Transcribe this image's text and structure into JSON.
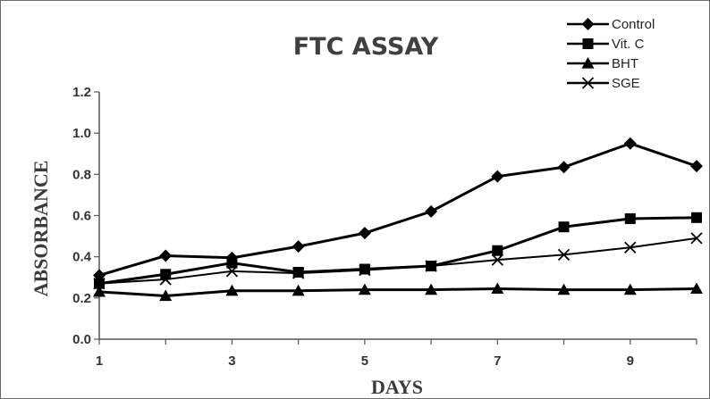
{
  "chart_data": {
    "type": "line",
    "title": "FTC ASSAY",
    "xlabel": "DAYS",
    "ylabel": "ABSORBANCE",
    "x": [
      1,
      2,
      3,
      4,
      5,
      6,
      7,
      8,
      9,
      10
    ],
    "xlim": [
      1,
      10
    ],
    "ylim": [
      0,
      1.2
    ],
    "x_ticks": [
      "1",
      "3",
      "5",
      "7",
      "9"
    ],
    "x_tick_values": [
      1,
      3,
      5,
      7,
      9
    ],
    "y_ticks": [
      "0.0",
      "0.2",
      "0.4",
      "0.6",
      "0.8",
      "1.0",
      "1.2"
    ],
    "y_tick_values": [
      0,
      0.2,
      0.4,
      0.6,
      0.8,
      1.0,
      1.2
    ],
    "grid": false,
    "legend_position": "top-right",
    "series": [
      {
        "name": "Control",
        "marker": "diamond",
        "values": [
          0.31,
          0.405,
          0.395,
          0.45,
          0.515,
          0.62,
          0.79,
          0.835,
          0.95,
          0.84
        ]
      },
      {
        "name": "Vit. C",
        "marker": "square",
        "values": [
          0.27,
          0.315,
          0.37,
          0.325,
          0.34,
          0.355,
          0.43,
          0.545,
          0.585,
          0.59
        ]
      },
      {
        "name": "BHT",
        "marker": "triangle",
        "values": [
          0.23,
          0.21,
          0.235,
          0.235,
          0.24,
          0.24,
          0.245,
          0.24,
          0.24,
          0.245
        ]
      },
      {
        "name": "SGE",
        "marker": "x",
        "values": [
          0.27,
          0.29,
          0.33,
          0.32,
          0.335,
          0.355,
          0.385,
          0.41,
          0.445,
          0.49
        ]
      }
    ]
  }
}
